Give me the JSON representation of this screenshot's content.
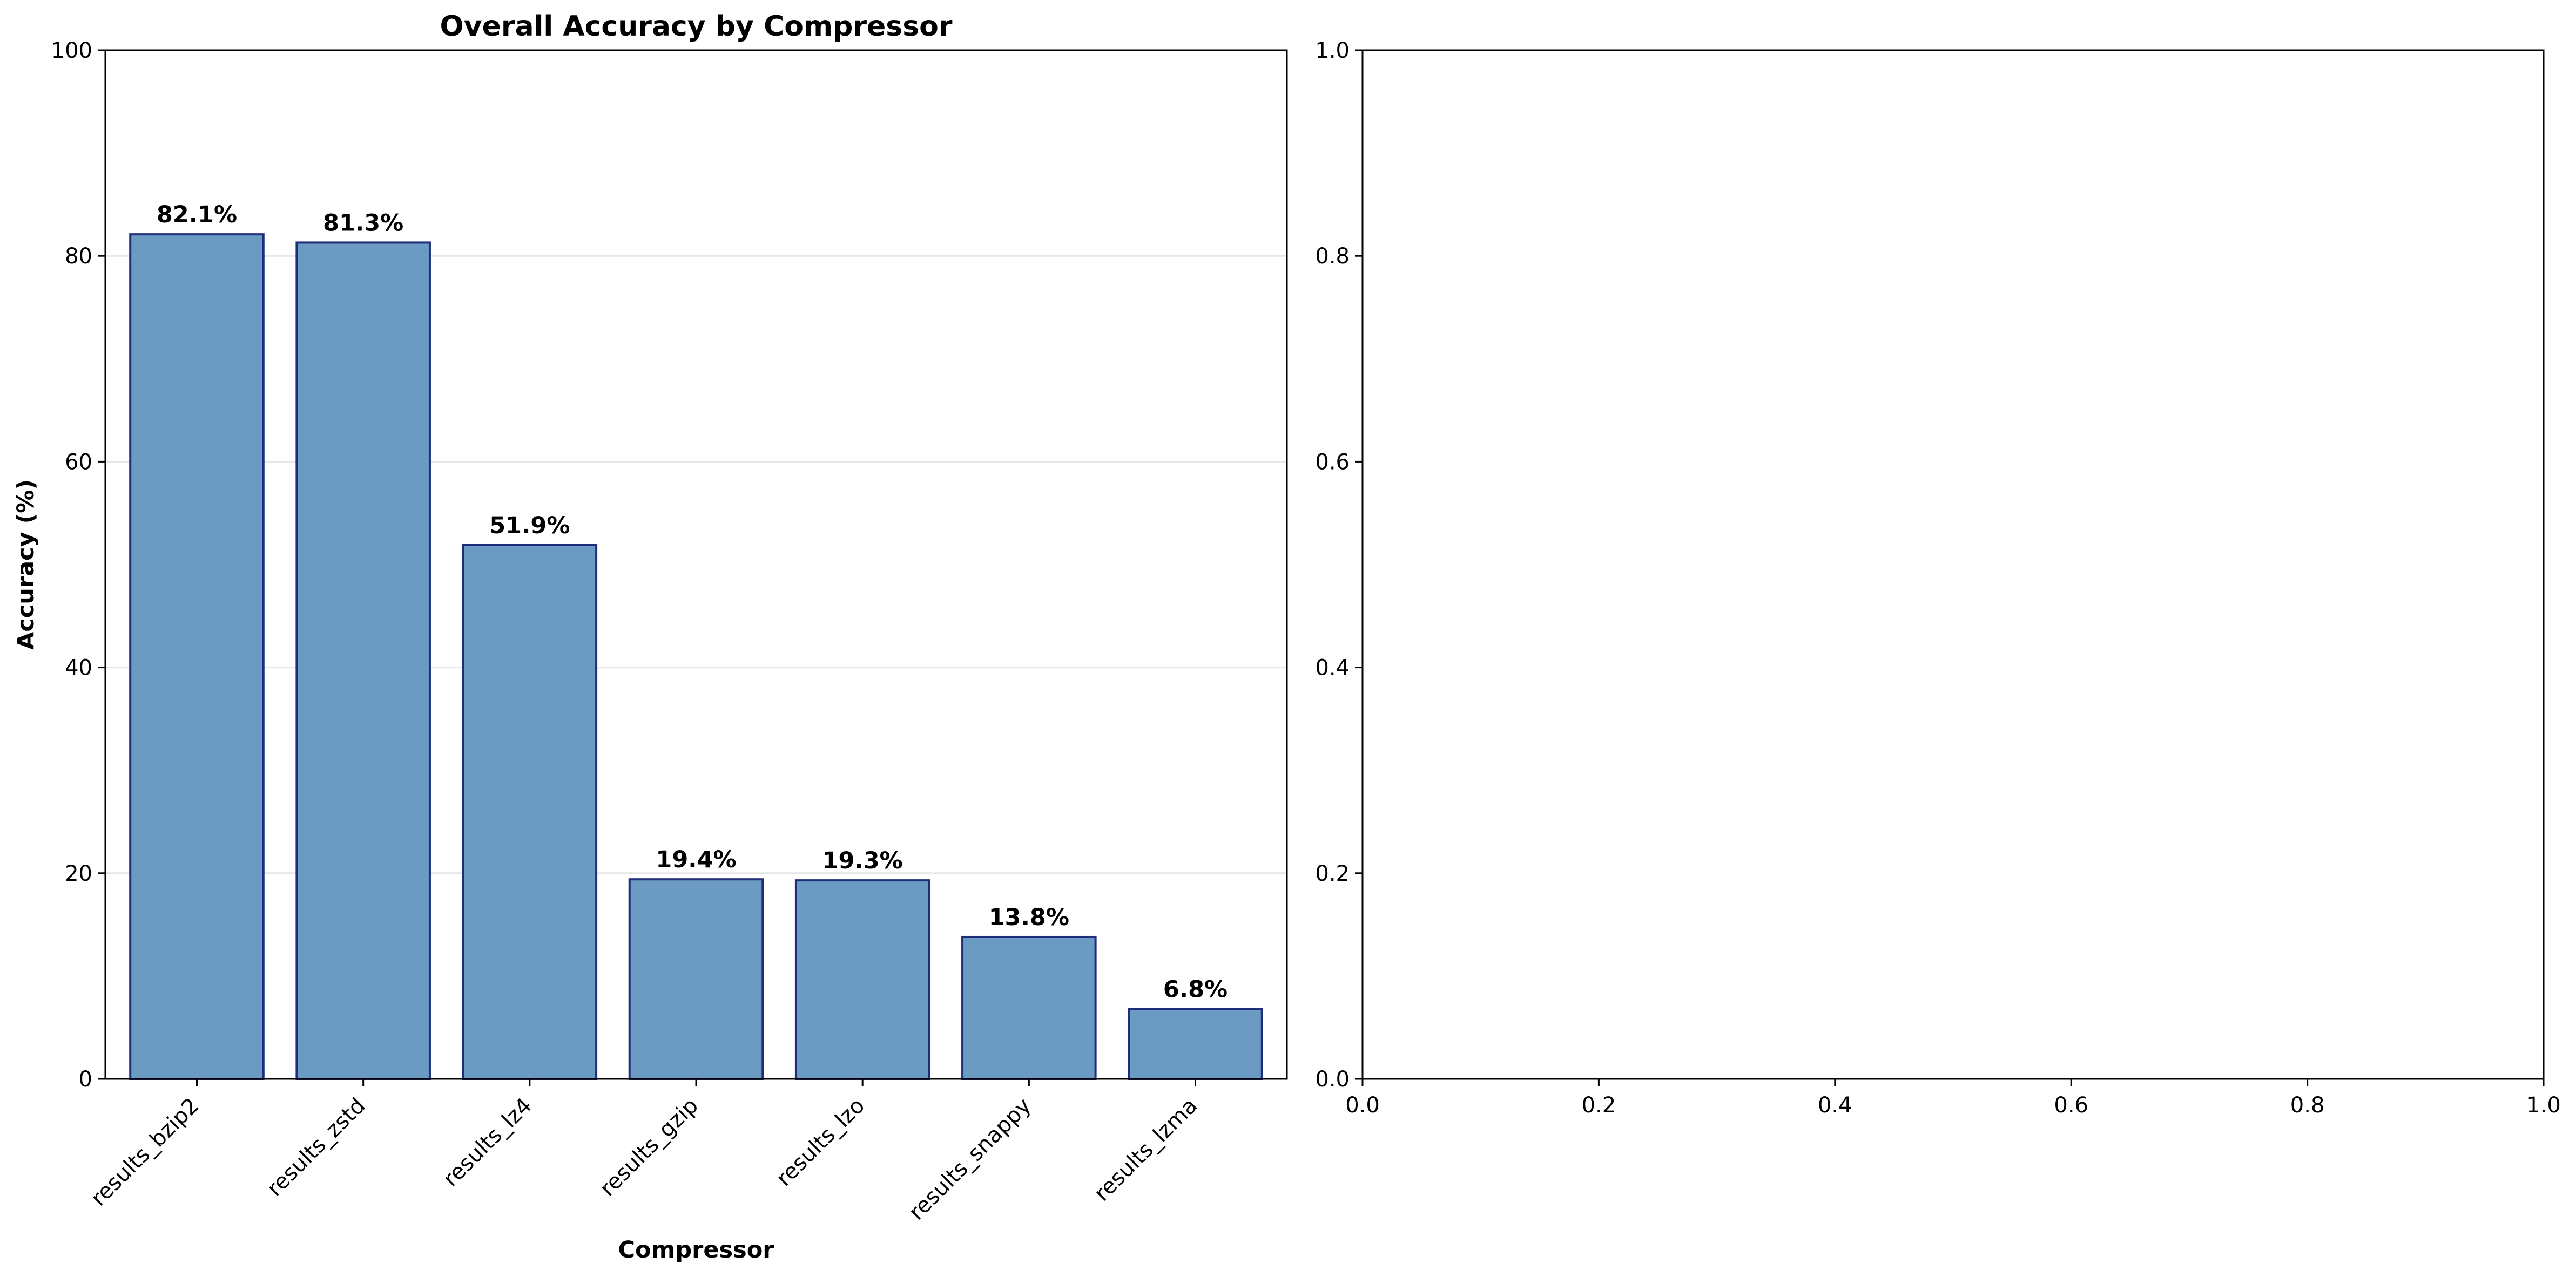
{
  "chart_data": [
    {
      "type": "bar",
      "title": "Overall Accuracy by Compressor",
      "xlabel": "Compressor",
      "ylabel": "Accuracy (%)",
      "categories": [
        "results_bzip2",
        "results_zstd",
        "results_lz4",
        "results_gzip",
        "results_lzo",
        "results_snappy",
        "results_lzma"
      ],
      "values": [
        82.1,
        81.3,
        51.9,
        19.4,
        19.3,
        13.8,
        6.8
      ],
      "value_labels": [
        "82.1%",
        "81.3%",
        "51.9%",
        "19.4%",
        "19.3%",
        "13.8%",
        "6.8%"
      ],
      "ylim": [
        0,
        100
      ],
      "yticks": [
        0,
        20,
        40,
        60,
        80,
        100
      ],
      "ytick_labels": [
        "0",
        "20",
        "40",
        "60",
        "80",
        "100"
      ],
      "grid": "horizontal",
      "bar_color": "#6b9bc3",
      "bar_edge_color": "#1f2d7a",
      "grid_color": "#e6e6e6"
    },
    {
      "type": "empty",
      "title": "",
      "xlim": [
        0.0,
        1.0
      ],
      "ylim": [
        0.0,
        1.0
      ],
      "xticks": [
        0.0,
        0.2,
        0.4,
        0.6,
        0.8,
        1.0
      ],
      "xtick_labels": [
        "0.0",
        "0.2",
        "0.4",
        "0.6",
        "0.8",
        "1.0"
      ],
      "yticks": [
        0.0,
        0.2,
        0.4,
        0.6,
        0.8,
        1.0
      ],
      "ytick_labels": [
        "0.0",
        "0.2",
        "0.4",
        "0.6",
        "0.8",
        "1.0"
      ]
    }
  ]
}
